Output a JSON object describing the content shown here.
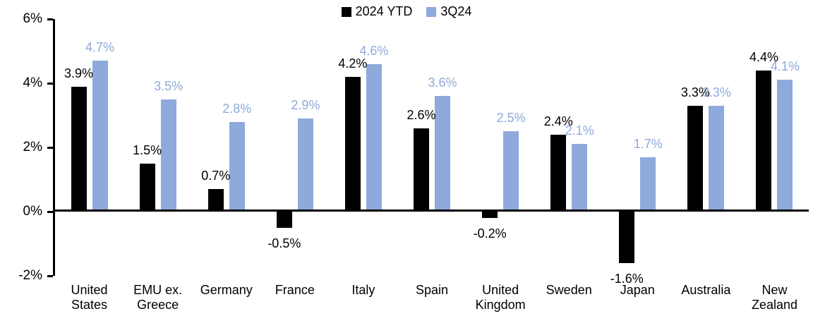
{
  "chart_data": {
    "type": "bar",
    "categories": [
      "United States",
      "EMU ex. Greece",
      "Germany",
      "France",
      "Italy",
      "Spain",
      "United Kingdom",
      "Sweden",
      "Japan",
      "Australia",
      "New Zealand"
    ],
    "series": [
      {
        "name": "2024 YTD",
        "color": "#000000",
        "values": [
          3.9,
          1.5,
          0.7,
          -0.5,
          4.2,
          2.6,
          -0.2,
          2.4,
          -1.6,
          3.3,
          4.4
        ],
        "labels": [
          "3.9%",
          "1.5%",
          "0.7%",
          "-0.5%",
          "4.2%",
          "2.6%",
          "-0.2%",
          "2.4%",
          "-1.6%",
          "3.3%",
          "4.4%"
        ]
      },
      {
        "name": "3Q24",
        "color": "#8EA9DB",
        "values": [
          4.7,
          3.5,
          2.8,
          2.9,
          4.6,
          3.6,
          2.5,
          2.1,
          1.7,
          3.3,
          4.1
        ],
        "labels": [
          "4.7%",
          "3.5%",
          "2.8%",
          "2.9%",
          "4.6%",
          "3.6%",
          "2.5%",
          "2.1%",
          "1.7%",
          "3.3%",
          "4.1%"
        ]
      }
    ],
    "ylim": [
      -2,
      6
    ],
    "yticks": [
      {
        "value": 6,
        "label": "6%"
      },
      {
        "value": 4,
        "label": "4%"
      },
      {
        "value": 2,
        "label": "2%"
      },
      {
        "value": 0,
        "label": "0%"
      },
      {
        "value": -2,
        "label": "-2%"
      }
    ],
    "grid": false,
    "legend_position": "top-center",
    "bar_label_position": "outside-end",
    "axis_color": "#000000"
  }
}
